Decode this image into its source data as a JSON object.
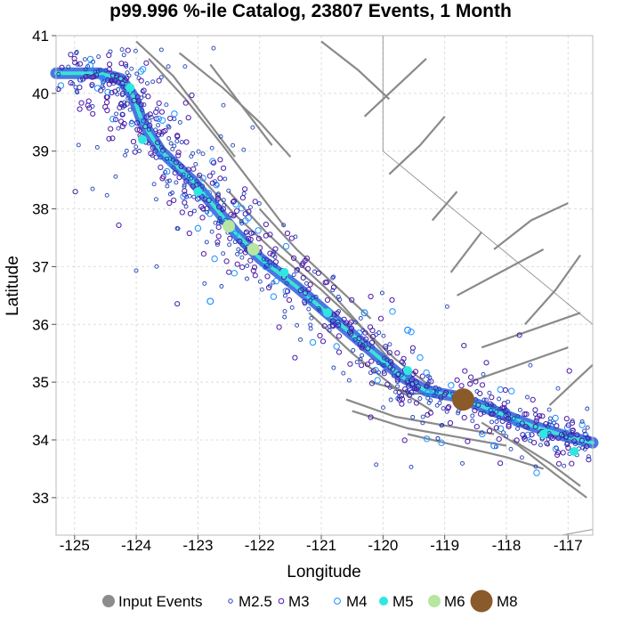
{
  "chart_data": {
    "type": "scatter",
    "title": "p99.996 %-ile Catalog, 23807 Events, 1 Month",
    "xlabel": "Longitude",
    "ylabel": "Latitude",
    "xlim": [
      -125.3,
      -116.6
    ],
    "ylim": [
      32.35,
      41.0
    ],
    "xticks": [
      -125,
      -124,
      -123,
      -122,
      -121,
      -120,
      -119,
      -118,
      -117
    ],
    "yticks": [
      33,
      34,
      35,
      36,
      37,
      38,
      39,
      40,
      41
    ],
    "grid": true,
    "legend_position": "bottom",
    "colors": {
      "input_events": "#8c8c8c",
      "m25": "#1f3fb5",
      "m3": "#4b1aa8",
      "m4": "#1e90ff",
      "m5": "#2ee8e0",
      "m6": "#b6e6a0",
      "m8": "#8b5a2b",
      "fault_lines": "#8a8a8a",
      "fault_trace": "#2b5fd9",
      "fault_trace_core": "#39e3d6",
      "border": "#999999"
    },
    "legend": [
      {
        "key": "input",
        "label": "Input Events"
      },
      {
        "key": "m25",
        "label": "M2.5"
      },
      {
        "key": "m3",
        "label": "M3"
      },
      {
        "key": "m4",
        "label": "M4"
      },
      {
        "key": "m5",
        "label": "M5"
      },
      {
        "key": "m6",
        "label": "M6"
      },
      {
        "key": "m8",
        "label": "M8"
      }
    ],
    "fault_trace": [
      [
        -125.3,
        40.35
      ],
      [
        -124.6,
        40.35
      ],
      [
        -124.25,
        40.25
      ],
      [
        -124.05,
        39.95
      ],
      [
        -123.9,
        39.5
      ],
      [
        -123.6,
        39.0
      ],
      [
        -123.1,
        38.5
      ],
      [
        -122.7,
        38.0
      ],
      [
        -122.4,
        37.6
      ],
      [
        -122.0,
        37.15
      ],
      [
        -121.4,
        36.65
      ],
      [
        -120.8,
        36.1
      ],
      [
        -120.2,
        35.55
      ],
      [
        -119.7,
        35.1
      ],
      [
        -119.3,
        34.85
      ],
      [
        -118.8,
        34.75
      ],
      [
        -118.2,
        34.5
      ],
      [
        -117.6,
        34.25
      ],
      [
        -117.0,
        34.05
      ],
      [
        -116.6,
        33.95
      ]
    ],
    "faults": [
      [
        [
          -124.0,
          40.9
        ],
        [
          -123.4,
          40.3
        ],
        [
          -122.9,
          39.6
        ],
        [
          -122.4,
          38.9
        ]
      ],
      [
        [
          -123.8,
          40.6
        ],
        [
          -123.2,
          39.9
        ],
        [
          -122.6,
          39.1
        ],
        [
          -122.1,
          38.4
        ],
        [
          -121.6,
          37.7
        ]
      ],
      [
        [
          -122.8,
          40.5
        ],
        [
          -122.3,
          39.8
        ],
        [
          -121.8,
          39.1
        ]
      ],
      [
        [
          -123.3,
          40.7
        ],
        [
          -122.6,
          40.1
        ],
        [
          -122.0,
          39.5
        ],
        [
          -121.5,
          38.9
        ]
      ],
      [
        [
          -122.5,
          38.3
        ],
        [
          -121.9,
          37.6
        ],
        [
          -121.3,
          37.0
        ],
        [
          -120.8,
          36.5
        ],
        [
          -120.3,
          35.9
        ],
        [
          -119.9,
          35.4
        ]
      ],
      [
        [
          -122.0,
          38.0
        ],
        [
          -121.4,
          37.3
        ],
        [
          -120.8,
          36.7
        ],
        [
          -120.2,
          36.1
        ]
      ],
      [
        [
          -123.0,
          38.6
        ],
        [
          -122.4,
          37.9
        ],
        [
          -121.8,
          37.3
        ],
        [
          -121.0,
          36.6
        ],
        [
          -120.4,
          36.0
        ],
        [
          -119.8,
          35.4
        ],
        [
          -119.2,
          34.9
        ]
      ],
      [
        [
          -121.2,
          36.2
        ],
        [
          -120.5,
          35.5
        ],
        [
          -119.8,
          34.9
        ],
        [
          -119.2,
          34.5
        ]
      ],
      [
        [
          -120.6,
          34.7
        ],
        [
          -119.8,
          34.4
        ],
        [
          -119.0,
          34.25
        ],
        [
          -118.2,
          34.1
        ]
      ],
      [
        [
          -120.5,
          34.5
        ],
        [
          -119.6,
          34.2
        ],
        [
          -118.8,
          34.05
        ],
        [
          -118.0,
          33.9
        ]
      ],
      [
        [
          -119.6,
          34.1
        ],
        [
          -118.8,
          33.9
        ],
        [
          -118.0,
          33.7
        ],
        [
          -117.4,
          33.5
        ]
      ],
      [
        [
          -118.4,
          34.3
        ],
        [
          -117.8,
          33.9
        ],
        [
          -117.2,
          33.4
        ],
        [
          -116.7,
          33.0
        ]
      ],
      [
        [
          -117.9,
          34.0
        ],
        [
          -117.3,
          33.6
        ],
        [
          -116.8,
          33.2
        ]
      ],
      [
        [
          -118.6,
          35.0
        ],
        [
          -117.8,
          35.3
        ],
        [
          -117.0,
          35.6
        ]
      ],
      [
        [
          -118.4,
          35.6
        ],
        [
          -117.6,
          35.9
        ],
        [
          -116.8,
          36.2
        ]
      ],
      [
        [
          -118.8,
          36.5
        ],
        [
          -118.1,
          36.9
        ],
        [
          -117.4,
          37.3
        ]
      ],
      [
        [
          -118.2,
          37.3
        ],
        [
          -117.6,
          37.8
        ],
        [
          -117.0,
          38.1
        ]
      ],
      [
        [
          -119.9,
          38.6
        ],
        [
          -119.4,
          39.1
        ],
        [
          -119.0,
          39.6
        ]
      ],
      [
        [
          -120.3,
          39.6
        ],
        [
          -119.8,
          40.1
        ],
        [
          -119.3,
          40.6
        ]
      ],
      [
        [
          -121.0,
          40.9
        ],
        [
          -120.4,
          40.4
        ],
        [
          -119.9,
          39.9
        ]
      ],
      [
        [
          -117.7,
          36.0
        ],
        [
          -117.2,
          36.6
        ],
        [
          -116.8,
          37.2
        ]
      ],
      [
        [
          -117.3,
          34.6
        ],
        [
          -116.9,
          35.0
        ],
        [
          -116.6,
          35.3
        ]
      ],
      [
        [
          -119.2,
          37.8
        ],
        [
          -118.8,
          38.3
        ]
      ],
      [
        [
          -118.9,
          36.9
        ],
        [
          -118.4,
          37.6
        ]
      ],
      [
        [
          -120.2,
          35.0
        ],
        [
          -119.5,
          34.8
        ],
        [
          -118.9,
          34.8
        ]
      ]
    ],
    "borders": [
      [
        [
          -120.0,
          41.0
        ],
        [
          -120.0,
          39.0
        ],
        [
          -116.6,
          36.0
        ]
      ],
      [
        [
          -117.1,
          32.35
        ],
        [
          -116.6,
          32.45
        ]
      ]
    ],
    "large_events": [
      {
        "mag": "M8",
        "lon": -118.7,
        "lat": 34.7
      },
      {
        "mag": "M6",
        "lon": -122.5,
        "lat": 37.7
      },
      {
        "mag": "M6",
        "lon": -122.1,
        "lat": 37.3
      },
      {
        "mag": "M5",
        "lon": -124.1,
        "lat": 40.1
      },
      {
        "mag": "M5",
        "lon": -123.9,
        "lat": 39.2
      },
      {
        "mag": "M5",
        "lon": -123.0,
        "lat": 38.3
      },
      {
        "mag": "M5",
        "lon": -121.6,
        "lat": 36.9
      },
      {
        "mag": "M5",
        "lon": -120.9,
        "lat": 36.2
      },
      {
        "mag": "M5",
        "lon": -119.6,
        "lat": 35.2
      },
      {
        "mag": "M5",
        "lon": -117.4,
        "lat": 34.1
      },
      {
        "mag": "M5",
        "lon": -116.9,
        "lat": 33.8
      },
      {
        "mag": "M4",
        "lon": -121.9,
        "lat": 37.0
      },
      {
        "mag": "M4",
        "lon": -120.3,
        "lat": 36.2
      },
      {
        "mag": "M4",
        "lon": -119.6,
        "lat": 35.9
      },
      {
        "mag": "M4",
        "lon": -122.8,
        "lat": 36.4
      },
      {
        "mag": "M4",
        "lon": -118.2,
        "lat": 33.9
      }
    ]
  }
}
